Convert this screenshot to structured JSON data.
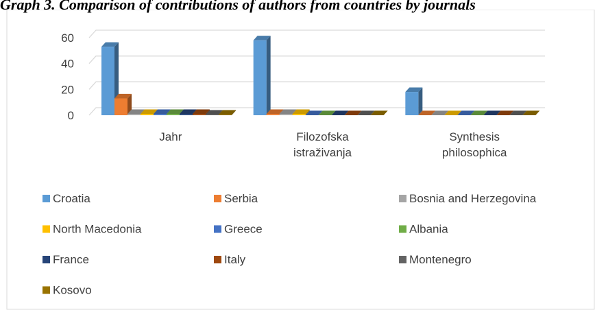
{
  "chart_data": {
    "type": "bar3d",
    "title": "Graph 3. Comparison of contributions of authors from countries by journals",
    "categories": [
      "Jahr",
      "Filozofska istraživanja",
      "Synthesis philosophica"
    ],
    "series": [
      {
        "name": "Croatia",
        "color": "#5b9bd5",
        "values": [
          53,
          58,
          18
        ]
      },
      {
        "name": "Serbia",
        "color": "#ed7d31",
        "values": [
          13,
          1,
          0
        ]
      },
      {
        "name": "Bosnia and Herzegovina",
        "color": "#a5a5a5",
        "values": [
          1,
          1,
          0
        ]
      },
      {
        "name": "North Macedonia",
        "color": "#ffc000",
        "values": [
          1,
          1,
          0
        ]
      },
      {
        "name": "Greece",
        "color": "#4472c4",
        "values": [
          1,
          0,
          0
        ]
      },
      {
        "name": "Albania",
        "color": "#70ad47",
        "values": [
          1,
          0,
          0
        ]
      },
      {
        "name": "France",
        "color": "#264478",
        "values": [
          1,
          0,
          0
        ]
      },
      {
        "name": "Italy",
        "color": "#9e480e",
        "values": [
          1,
          0,
          0
        ]
      },
      {
        "name": "Montenegro",
        "color": "#636363",
        "values": [
          0.5,
          0,
          0
        ]
      },
      {
        "name": "Kosovo",
        "color": "#997300",
        "values": [
          0.5,
          0,
          0
        ]
      }
    ],
    "ylim": [
      0,
      60
    ],
    "yticks": [
      0,
      20,
      40,
      60
    ],
    "grid": true
  }
}
